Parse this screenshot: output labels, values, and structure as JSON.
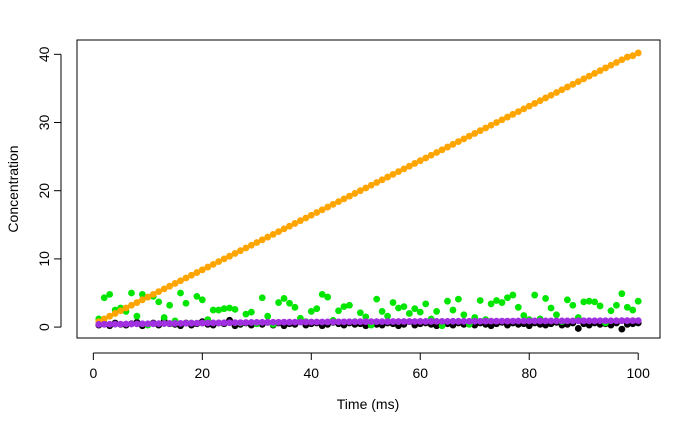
{
  "chart_data": {
    "type": "scatter",
    "title": "",
    "xlabel": "Time (ms)",
    "ylabel": "Concentration",
    "xlim": [
      -3,
      104
    ],
    "ylim": [
      -1.6,
      42.1
    ],
    "xticks": [
      0,
      20,
      40,
      60,
      80,
      100
    ],
    "yticks": [
      0,
      10,
      20,
      30,
      40
    ],
    "xtick_labels": [
      "0",
      "20",
      "40",
      "60",
      "80",
      "100"
    ],
    "ytick_labels": [
      "0",
      "10",
      "20",
      "30",
      "40"
    ],
    "grid": false,
    "legend": "none",
    "series": [
      {
        "color": "#000000",
        "x": [
          1,
          2,
          3,
          4,
          5,
          6,
          7,
          8,
          9,
          10,
          11,
          12,
          13,
          14,
          15,
          16,
          17,
          18,
          19,
          20,
          21,
          22,
          23,
          24,
          25,
          26,
          27,
          28,
          29,
          30,
          31,
          32,
          33,
          34,
          35,
          36,
          37,
          38,
          39,
          40,
          41,
          42,
          43,
          44,
          45,
          46,
          47,
          48,
          49,
          50,
          51,
          52,
          53,
          54,
          55,
          56,
          57,
          58,
          59,
          60,
          61,
          62,
          63,
          64,
          65,
          66,
          67,
          68,
          69,
          70,
          71,
          72,
          73,
          74,
          75,
          76,
          77,
          78,
          79,
          80,
          81,
          82,
          83,
          84,
          85,
          86,
          87,
          88,
          89,
          90,
          91,
          92,
          93,
          94,
          95,
          96,
          97,
          98,
          99,
          100
        ],
        "y": [
          0.3,
          0.5,
          0.2,
          0.6,
          0.4,
          0.3,
          0.5,
          0.7,
          0.2,
          0.4,
          0.6,
          0.3,
          0.9,
          0.5,
          0.4,
          0.2,
          0.6,
          0.3,
          0.5,
          0.8,
          0.4,
          0.3,
          0.6,
          0.5,
          1.0,
          0.2,
          0.4,
          0.6,
          0.3,
          0.5,
          0.4,
          0.7,
          0.3,
          0.6,
          0.2,
          0.5,
          0.4,
          0.8,
          0.3,
          0.5,
          0.6,
          0.2,
          0.4,
          0.7,
          0.5,
          0.3,
          0.6,
          0.4,
          0.5,
          0.2,
          0.7,
          0.4,
          0.3,
          0.6,
          0.5,
          0.2,
          0.4,
          0.8,
          0.3,
          0.5,
          0.6,
          0.4,
          0.2,
          0.7,
          0.5,
          0.3,
          0.6,
          0.4,
          0.5,
          0.3,
          0.6,
          0.4,
          0.2,
          0.5,
          0.7,
          0.3,
          0.6,
          0.4,
          0.5,
          0.2,
          0.6,
          0.4,
          0.3,
          0.5,
          0.7,
          0.3,
          0.4,
          0.6,
          -0.2,
          0.5,
          0.3,
          0.6,
          0.4,
          0.5,
          0.3,
          0.6,
          -0.3,
          0.4,
          0.5,
          0.6
        ]
      },
      {
        "color": "#00e600",
        "x": [
          1,
          2,
          3,
          4,
          5,
          6,
          7,
          8,
          9,
          10,
          11,
          12,
          13,
          14,
          15,
          16,
          17,
          18,
          19,
          20,
          21,
          22,
          23,
          24,
          25,
          26,
          27,
          28,
          29,
          30,
          31,
          32,
          33,
          34,
          35,
          36,
          37,
          38,
          39,
          40,
          41,
          42,
          43,
          44,
          45,
          46,
          47,
          48,
          49,
          50,
          51,
          52,
          53,
          54,
          55,
          56,
          57,
          58,
          59,
          60,
          61,
          62,
          63,
          64,
          65,
          66,
          67,
          68,
          69,
          70,
          71,
          72,
          73,
          74,
          75,
          76,
          77,
          78,
          79,
          80,
          81,
          82,
          83,
          84,
          85,
          86,
          87,
          88,
          89,
          90,
          91,
          92,
          93,
          94,
          95,
          96,
          97,
          98,
          99,
          100
        ],
        "y": [
          1.2,
          4.3,
          4.8,
          2.5,
          2.8,
          2.3,
          5.0,
          1.6,
          4.8,
          0.3,
          4.5,
          3.7,
          1.4,
          3.2,
          0.9,
          5.0,
          3.5,
          0.6,
          4.5,
          4.0,
          1.1,
          2.5,
          2.5,
          2.7,
          2.8,
          2.6,
          0.6,
          1.9,
          2.2,
          0.5,
          4.3,
          1.6,
          0.4,
          3.6,
          4.2,
          3.5,
          2.9,
          1.3,
          0.8,
          2.3,
          2.7,
          4.8,
          4.4,
          1.0,
          2.4,
          3.0,
          3.2,
          0.8,
          2.1,
          1.5,
          0.3,
          4.1,
          2.3,
          1.6,
          3.6,
          2.8,
          3.0,
          2.0,
          2.7,
          2.2,
          3.4,
          1.2,
          2.3,
          0.2,
          3.8,
          2.5,
          4.1,
          1.8,
          0.4,
          1.4,
          3.9,
          1.1,
          3.4,
          3.9,
          3.6,
          4.3,
          4.7,
          2.9,
          1.7,
          1.1,
          4.7,
          1.2,
          4.2,
          2.8,
          1.8,
          0.8,
          4.0,
          3.2,
          1.4,
          3.7,
          3.8,
          3.7,
          3.1,
          0.6,
          2.4,
          3.2,
          4.9,
          2.9,
          2.5,
          3.8
        ]
      },
      {
        "color": "#ffa500",
        "x": [
          1,
          2,
          3,
          4,
          5,
          6,
          7,
          8,
          9,
          10,
          11,
          12,
          13,
          14,
          15,
          16,
          17,
          18,
          19,
          20,
          21,
          22,
          23,
          24,
          25,
          26,
          27,
          28,
          29,
          30,
          31,
          32,
          33,
          34,
          35,
          36,
          37,
          38,
          39,
          40,
          41,
          42,
          43,
          44,
          45,
          46,
          47,
          48,
          49,
          50,
          51,
          52,
          53,
          54,
          55,
          56,
          57,
          58,
          59,
          60,
          61,
          62,
          63,
          64,
          65,
          66,
          67,
          68,
          69,
          70,
          71,
          72,
          73,
          74,
          75,
          76,
          77,
          78,
          79,
          80,
          81,
          82,
          83,
          84,
          85,
          86,
          87,
          88,
          89,
          90,
          91,
          92,
          93,
          94,
          95,
          96,
          97,
          98,
          99,
          100
        ],
        "y": [
          0.8,
          1.2,
          1.6,
          2.0,
          2.4,
          2.8,
          3.2,
          3.6,
          4.0,
          4.4,
          4.8,
          5.2,
          5.6,
          6.0,
          6.4,
          6.8,
          7.2,
          7.6,
          8.0,
          8.4,
          8.8,
          9.2,
          9.6,
          10.0,
          10.4,
          10.8,
          11.2,
          11.6,
          12.0,
          12.4,
          12.8,
          13.2,
          13.6,
          14.0,
          14.4,
          14.8,
          15.2,
          15.6,
          16.0,
          16.4,
          16.8,
          17.2,
          17.6,
          18.0,
          18.4,
          18.8,
          19.2,
          19.6,
          20.0,
          20.4,
          20.8,
          21.2,
          21.6,
          22.0,
          22.4,
          22.8,
          23.2,
          23.6,
          24.0,
          24.4,
          24.8,
          25.2,
          25.6,
          26.0,
          26.4,
          26.8,
          27.2,
          27.6,
          28.0,
          28.4,
          28.8,
          29.2,
          29.6,
          30.0,
          30.4,
          30.8,
          31.2,
          31.6,
          32.0,
          32.4,
          32.8,
          33.2,
          33.6,
          34.0,
          34.4,
          34.8,
          35.2,
          35.6,
          36.0,
          36.4,
          36.8,
          37.2,
          37.6,
          38.0,
          38.4,
          38.8,
          39.2,
          39.6,
          39.8,
          40.2
        ]
      },
      {
        "color": "#a030e0",
        "x": [
          1,
          2,
          3,
          4,
          5,
          6,
          7,
          8,
          9,
          10,
          11,
          12,
          13,
          14,
          15,
          16,
          17,
          18,
          19,
          20,
          21,
          22,
          23,
          24,
          25,
          26,
          27,
          28,
          29,
          30,
          31,
          32,
          33,
          34,
          35,
          36,
          37,
          38,
          39,
          40,
          41,
          42,
          43,
          44,
          45,
          46,
          47,
          48,
          49,
          50,
          51,
          52,
          53,
          54,
          55,
          56,
          57,
          58,
          59,
          60,
          61,
          62,
          63,
          64,
          65,
          66,
          67,
          68,
          69,
          70,
          71,
          72,
          73,
          74,
          75,
          76,
          77,
          78,
          79,
          80,
          81,
          82,
          83,
          84,
          85,
          86,
          87,
          88,
          89,
          90,
          91,
          92,
          93,
          94,
          95,
          96,
          97,
          98,
          99,
          100
        ],
        "y": [
          0.4,
          0.41,
          0.42,
          0.43,
          0.44,
          0.45,
          0.46,
          0.47,
          0.48,
          0.49,
          0.5,
          0.51,
          0.52,
          0.53,
          0.54,
          0.55,
          0.56,
          0.57,
          0.58,
          0.59,
          0.6,
          0.61,
          0.62,
          0.63,
          0.64,
          0.65,
          0.66,
          0.67,
          0.68,
          0.69,
          0.7,
          0.7,
          0.71,
          0.71,
          0.72,
          0.72,
          0.73,
          0.73,
          0.74,
          0.74,
          0.75,
          0.75,
          0.76,
          0.76,
          0.77,
          0.77,
          0.78,
          0.78,
          0.79,
          0.79,
          0.8,
          0.8,
          0.8,
          0.81,
          0.81,
          0.81,
          0.82,
          0.82,
          0.82,
          0.83,
          0.83,
          0.83,
          0.84,
          0.84,
          0.84,
          0.85,
          0.85,
          0.85,
          0.86,
          0.86,
          0.86,
          0.87,
          0.87,
          0.87,
          0.88,
          0.88,
          0.88,
          0.89,
          0.89,
          0.89,
          0.9,
          0.9,
          0.9,
          0.9,
          0.91,
          0.91,
          0.91,
          0.91,
          0.92,
          0.92,
          0.92,
          0.92,
          0.93,
          0.93,
          0.93,
          0.93,
          0.94,
          0.94,
          0.94,
          0.95
        ]
      }
    ]
  }
}
